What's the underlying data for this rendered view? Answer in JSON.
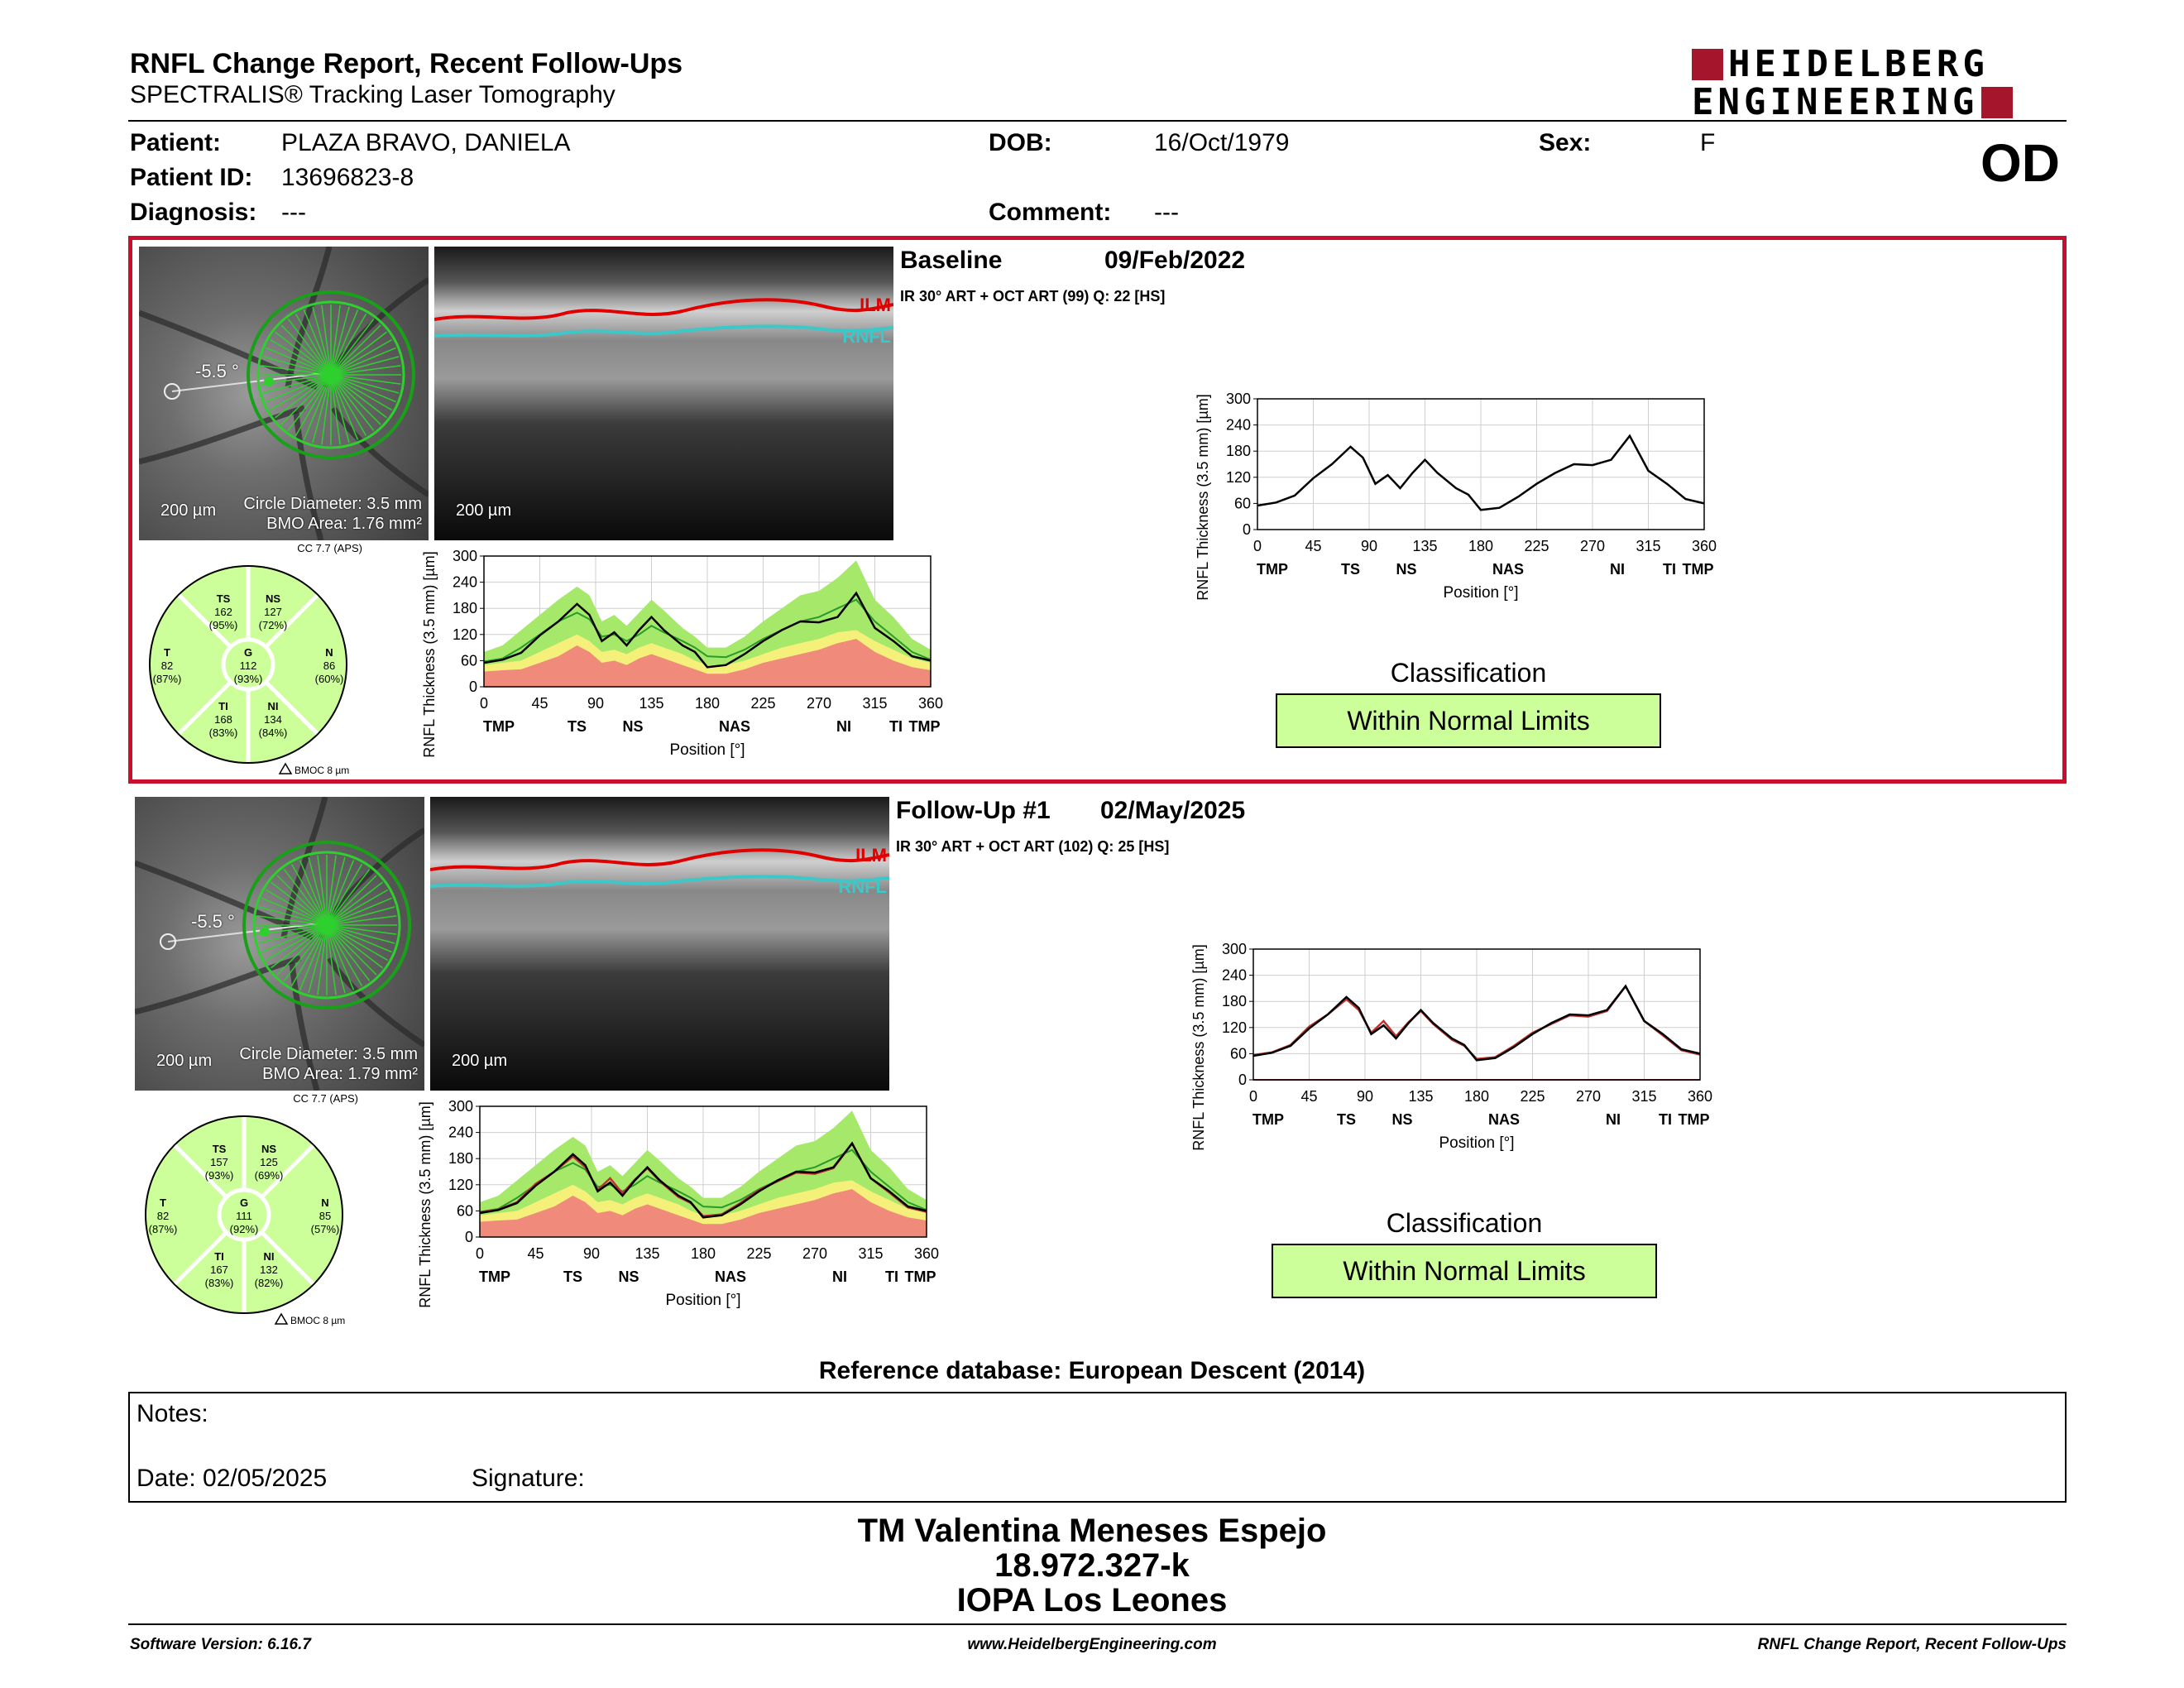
{
  "header": {
    "title": "RNFL Change Report, Recent Follow-Ups",
    "subtitle": "SPECTRALIS® Tracking Laser Tomography",
    "logo_line1": "HEIDELBERG",
    "logo_line2": "ENGINEERING",
    "eye": "OD"
  },
  "patient": {
    "patient_label": "Patient:",
    "patient_name": "PLAZA BRAVO, DANIELA",
    "dob_label": "DOB:",
    "dob": "16/Oct/1979",
    "sex_label": "Sex:",
    "sex": "F",
    "id_label": "Patient ID:",
    "id": "13696823-8",
    "diagnosis_label": "Diagnosis:",
    "diagnosis": "---",
    "comment_label": "Comment:",
    "comment": "---"
  },
  "common": {
    "scale_bar": "200 µm",
    "circle_diameter": "Circle Diameter: 3.5 mm",
    "cc_label": "CC 7.7 (APS)",
    "delta_bmoc": "BMOC 8 µm",
    "ilm_label": "ILM",
    "rnfl_label": "RNFL",
    "classification_label": "Classification",
    "x_title": "Position [°]",
    "y_title": "RNFL Thickness (3.5 mm) [µm]",
    "x_ticks": [
      "0",
      "45",
      "90",
      "135",
      "180",
      "225",
      "270",
      "315",
      "360"
    ],
    "y_ticks": [
      "0",
      "60",
      "120",
      "180",
      "240",
      "300"
    ],
    "sector_ticks": [
      "TMP",
      "TS",
      "NS",
      "NAS",
      "NI",
      "TI",
      "TMP"
    ],
    "colors": {
      "green_band": "#a6e86a",
      "yellow_band": "#f5f07a",
      "red_band": "#f08a7a",
      "border_red": "#c8102e",
      "ilm": "#e00000",
      "rnfl": "#3cc8c8",
      "wnl": "#ccff99"
    }
  },
  "exams": [
    {
      "title": "Baseline",
      "date": "09/Feb/2022",
      "meta": "IR 30° ART + OCT ART (99) Q: 22 [HS]",
      "angle": "-5.5 °",
      "bmo_area": "BMO Area: 1.76 mm²",
      "classification": "Within Normal Limits",
      "sectors": {
        "TS": {
          "name": "TS",
          "value": "162",
          "pct": "(95%)"
        },
        "NS": {
          "name": "NS",
          "value": "127",
          "pct": "(72%)"
        },
        "T": {
          "name": "T",
          "value": "82",
          "pct": "(87%)"
        },
        "G": {
          "name": "G",
          "value": "112",
          "pct": "(93%)"
        },
        "N": {
          "name": "N",
          "value": "86",
          "pct": "(60%)"
        },
        "TI": {
          "name": "TI",
          "value": "168",
          "pct": "(83%)"
        },
        "NI": {
          "name": "NI",
          "value": "134",
          "pct": "(84%)"
        }
      }
    },
    {
      "title": "Follow-Up #1",
      "date": "02/May/2025",
      "meta": "IR 30° ART + OCT ART (102) Q: 25 [HS]",
      "angle": "-5.5 °",
      "bmo_area": "BMO Area: 1.79 mm²",
      "classification": "Within Normal Limits",
      "sectors": {
        "TS": {
          "name": "TS",
          "value": "157",
          "pct": "(93%)"
        },
        "NS": {
          "name": "NS",
          "value": "125",
          "pct": "(69%)"
        },
        "T": {
          "name": "T",
          "value": "82",
          "pct": "(87%)"
        },
        "G": {
          "name": "G",
          "value": "111",
          "pct": "(92%)"
        },
        "N": {
          "name": "N",
          "value": "85",
          "pct": "(57%)"
        },
        "TI": {
          "name": "TI",
          "value": "167",
          "pct": "(83%)"
        },
        "NI": {
          "name": "NI",
          "value": "132",
          "pct": "(82%)"
        }
      }
    }
  ],
  "chart_data": [
    {
      "type": "line",
      "xlim": [
        0,
        360
      ],
      "ylim": [
        0,
        300
      ],
      "xlabel": "Position [°]",
      "ylabel": "RNFL Thickness (3.5 mm) [µm]",
      "x": [
        0,
        15,
        30,
        45,
        60,
        75,
        85,
        95,
        105,
        115,
        125,
        135,
        145,
        160,
        170,
        180,
        195,
        210,
        225,
        240,
        255,
        270,
        285,
        300,
        315,
        330,
        345,
        360
      ],
      "series": [
        {
          "values": [
            55,
            62,
            78,
            118,
            150,
            190,
            165,
            105,
            125,
            95,
            130,
            160,
            130,
            95,
            80,
            45,
            50,
            75,
            105,
            130,
            150,
            148,
            160,
            215,
            135,
            105,
            70,
            60
          ]
        }
      ],
      "bands": {
        "green_upper": [
          80,
          95,
          130,
          165,
          200,
          230,
          210,
          150,
          165,
          140,
          170,
          200,
          175,
          135,
          115,
          90,
          90,
          115,
          150,
          180,
          210,
          220,
          250,
          290,
          200,
          160,
          110,
          85
        ],
        "yellow_upper": [
          50,
          55,
          60,
          80,
          100,
          120,
          105,
          80,
          85,
          75,
          90,
          100,
          90,
          75,
          60,
          50,
          50,
          60,
          75,
          90,
          100,
          110,
          125,
          130,
          105,
          85,
          65,
          55
        ],
        "red_upper": [
          35,
          38,
          40,
          55,
          70,
          95,
          80,
          55,
          60,
          50,
          65,
          75,
          65,
          50,
          40,
          30,
          30,
          40,
          55,
          65,
          75,
          85,
          100,
          110,
          80,
          60,
          45,
          38
        ],
        "normal_mean": [
          58,
          65,
          90,
          120,
          150,
          170,
          155,
          115,
          120,
          105,
          120,
          140,
          125,
          105,
          90,
          70,
          68,
          85,
          110,
          130,
          150,
          160,
          180,
          200,
          150,
          115,
          80,
          62
        ]
      }
    },
    {
      "type": "line",
      "xlim": [
        0,
        360
      ],
      "ylim": [
        0,
        300
      ],
      "xlabel": "Position [°]",
      "ylabel": "RNFL Thickness (3.5 mm) [µm]",
      "x": [
        0,
        15,
        30,
        45,
        60,
        75,
        85,
        95,
        105,
        115,
        125,
        135,
        145,
        160,
        170,
        180,
        195,
        210,
        225,
        240,
        255,
        270,
        285,
        300,
        315,
        330,
        345,
        360
      ],
      "series": [
        {
          "values": [
            57,
            63,
            80,
            122,
            150,
            185,
            160,
            108,
            135,
            100,
            132,
            158,
            128,
            92,
            78,
            48,
            52,
            78,
            108,
            128,
            148,
            145,
            158,
            215,
            135,
            102,
            68,
            58
          ]
        },
        {
          "values": [
            55,
            62,
            78,
            118,
            150,
            190,
            165,
            105,
            125,
            95,
            130,
            160,
            130,
            95,
            80,
            45,
            50,
            75,
            105,
            130,
            150,
            148,
            160,
            215,
            135,
            105,
            70,
            60
          ]
        }
      ],
      "bands": {
        "green_upper": [
          80,
          95,
          130,
          165,
          200,
          230,
          210,
          150,
          165,
          140,
          170,
          200,
          175,
          135,
          115,
          90,
          90,
          115,
          150,
          180,
          210,
          220,
          250,
          290,
          200,
          160,
          110,
          85
        ],
        "yellow_upper": [
          50,
          55,
          60,
          80,
          100,
          120,
          105,
          80,
          85,
          75,
          90,
          100,
          90,
          75,
          60,
          50,
          50,
          60,
          75,
          90,
          100,
          110,
          125,
          130,
          105,
          85,
          65,
          55
        ],
        "red_upper": [
          35,
          38,
          40,
          55,
          70,
          95,
          80,
          55,
          60,
          50,
          65,
          75,
          65,
          50,
          40,
          30,
          30,
          40,
          55,
          65,
          75,
          85,
          100,
          110,
          80,
          60,
          45,
          38
        ],
        "normal_mean": [
          58,
          65,
          90,
          120,
          150,
          170,
          155,
          115,
          120,
          105,
          120,
          140,
          125,
          105,
          90,
          70,
          68,
          85,
          110,
          130,
          150,
          160,
          180,
          200,
          150,
          115,
          80,
          62
        ]
      }
    }
  ],
  "reference_db": "Reference database: European Descent (2014)",
  "notes": {
    "label": "Notes:",
    "date": "Date: 02/05/2025",
    "signature": "Signature:"
  },
  "signatory": {
    "name": "TM Valentina Meneses Espejo",
    "rut": "18.972.327-k",
    "institution": "IOPA Los Leones"
  },
  "footer": {
    "software": "Software Version: 6.16.7",
    "website": "www.HeidelbergEngineering.com",
    "report": "RNFL Change Report, Recent Follow-Ups"
  }
}
